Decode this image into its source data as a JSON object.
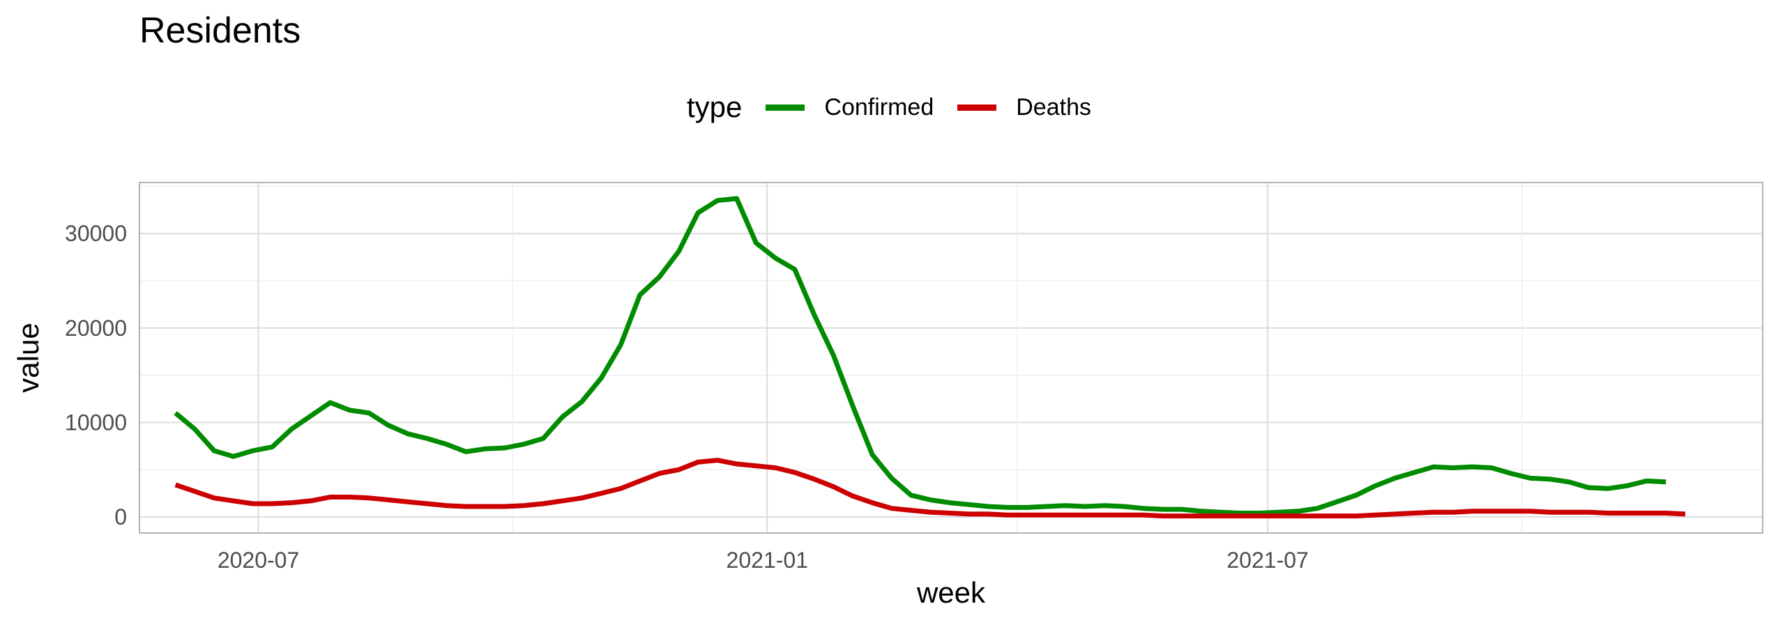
{
  "chart_data": {
    "type": "line",
    "title": "Residents",
    "xlabel": "week",
    "ylabel": "value",
    "legend": {
      "title": "type",
      "placement": "top"
    },
    "grid": true,
    "x_start": "2020-06-01",
    "x_step_days": 7,
    "xlim": [
      "2020-05-19",
      "2021-12-27"
    ],
    "ylim": [
      -1700,
      35400
    ],
    "x_ticks": [
      {
        "label": "2020-07",
        "date": "2020-07-01"
      },
      {
        "label": "2021-01",
        "date": "2021-01-01"
      },
      {
        "label": "2021-07",
        "date": "2021-07-01"
      }
    ],
    "y_ticks": [
      0,
      10000,
      20000,
      30000
    ],
    "series": [
      {
        "name": "Confirmed",
        "color": "#008B00",
        "values": [
          11000,
          9300,
          7000,
          6400,
          7000,
          7400,
          9300,
          10700,
          12100,
          11300,
          11000,
          9700,
          8800,
          8300,
          7700,
          6900,
          7200,
          7300,
          7700,
          8300,
          10600,
          12200,
          14700,
          18200,
          23500,
          25400,
          28100,
          32200,
          33500,
          33700,
          29000,
          27400,
          26200,
          21400,
          17100,
          11700,
          6600,
          4100,
          2300,
          1800,
          1500,
          1300,
          1100,
          1000,
          1000,
          1100,
          1200,
          1100,
          1200,
          1100,
          900,
          800,
          800,
          600,
          500,
          400,
          400,
          500,
          600,
          900,
          1600,
          2300,
          3300,
          4100,
          4700,
          5300,
          5200,
          5300,
          5200,
          4600,
          4100,
          4000,
          3700,
          3100,
          3000,
          3300,
          3800,
          3700
        ]
      },
      {
        "name": "Deaths",
        "color": "#CC0000",
        "values": [
          3400,
          2700,
          2000,
          1700,
          1400,
          1400,
          1500,
          1700,
          2100,
          2100,
          2000,
          1800,
          1600,
          1400,
          1200,
          1100,
          1100,
          1100,
          1200,
          1400,
          1700,
          2000,
          2500,
          3000,
          3800,
          4600,
          5000,
          5800,
          6000,
          5600,
          5400,
          5200,
          4700,
          4000,
          3200,
          2200,
          1500,
          900,
          700,
          500,
          400,
          300,
          300,
          200,
          200,
          200,
          200,
          200,
          200,
          200,
          200,
          100,
          100,
          100,
          100,
          100,
          100,
          100,
          100,
          100,
          100,
          100,
          200,
          300,
          400,
          500,
          500,
          600,
          600,
          600,
          600,
          500,
          500,
          500,
          400,
          400,
          400,
          400,
          300
        ]
      }
    ]
  }
}
